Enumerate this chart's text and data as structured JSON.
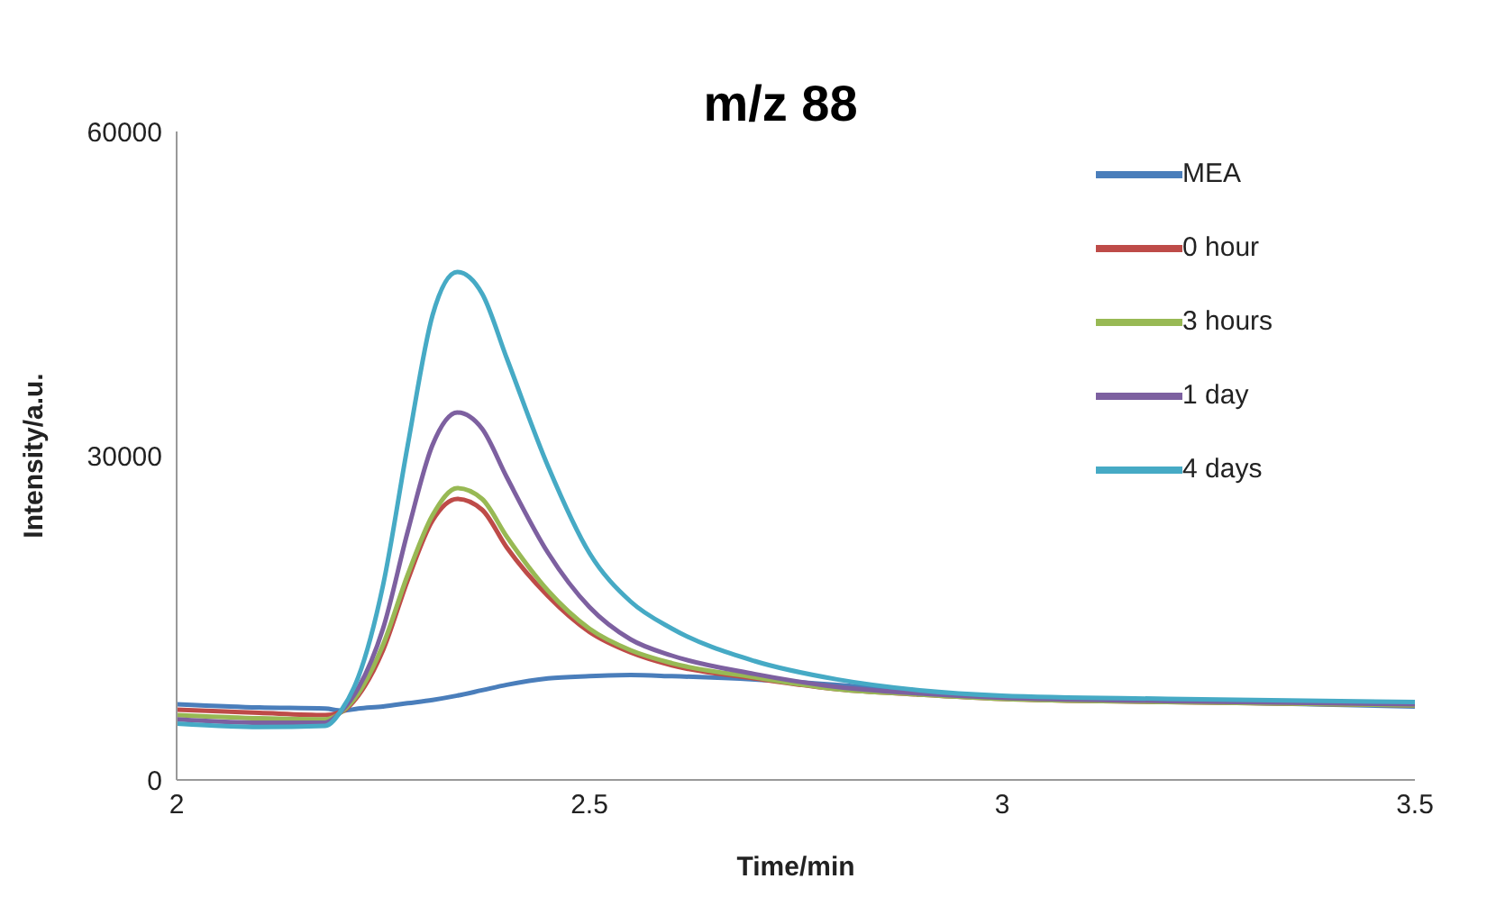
{
  "chart_data": {
    "type": "line",
    "title": "m/z 88",
    "xlabel": "Time/min",
    "ylabel": "Intensity/a.u.",
    "x": [
      2.0,
      2.1,
      2.18,
      2.2,
      2.22,
      2.25,
      2.28,
      2.31,
      2.34,
      2.37,
      2.4,
      2.45,
      2.5,
      2.55,
      2.6,
      2.7,
      2.8,
      2.9,
      3.0,
      3.2,
      3.5
    ],
    "xlim": [
      2,
      3.5
    ],
    "xticks": [
      2,
      2.5,
      3,
      3.5
    ],
    "ylim": [
      0,
      60000
    ],
    "yticks": [
      0,
      30000,
      60000
    ],
    "grid": false,
    "legend": "top right",
    "marker": "none",
    "line_style": "solid",
    "series": [
      {
        "name": "MEA",
        "color": "#4a7ebb",
        "values": [
          7000,
          6700,
          6600,
          6400,
          6600,
          6800,
          7100,
          7400,
          7800,
          8300,
          8800,
          9400,
          9600,
          9700,
          9600,
          9300,
          8800,
          8200,
          7600,
          7300,
          6800
        ]
      },
      {
        "name": "0 hour",
        "color": "#be4b48",
        "values": [
          6500,
          6200,
          6000,
          6300,
          7800,
          12000,
          18500,
          24000,
          26000,
          25000,
          21500,
          17000,
          13700,
          11800,
          10600,
          9400,
          8400,
          7900,
          7500,
          7200,
          6900
        ]
      },
      {
        "name": "3 hours",
        "color": "#98b954",
        "values": [
          6000,
          5700,
          5600,
          6300,
          8000,
          12500,
          19000,
          24500,
          27000,
          26000,
          22500,
          17500,
          14000,
          12000,
          10800,
          9500,
          8400,
          7900,
          7500,
          7200,
          6900
        ]
      },
      {
        "name": "1 day",
        "color": "#7d60a0",
        "values": [
          5600,
          5300,
          5300,
          6400,
          8500,
          14000,
          23000,
          31000,
          34000,
          32500,
          28000,
          21000,
          16000,
          13000,
          11500,
          9800,
          8600,
          8000,
          7600,
          7300,
          7000
        ]
      },
      {
        "name": "4 days",
        "color": "#46aac5",
        "values": [
          5200,
          4900,
          5000,
          6500,
          9500,
          18000,
          31000,
          43000,
          47000,
          45000,
          39000,
          29000,
          21000,
          16500,
          14000,
          11000,
          9300,
          8300,
          7800,
          7500,
          7200
        ]
      }
    ]
  }
}
